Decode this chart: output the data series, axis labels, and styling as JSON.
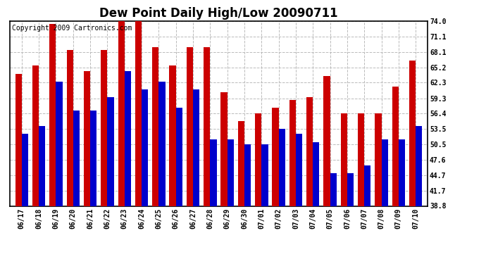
{
  "title": "Dew Point Daily High/Low 20090711",
  "copyright": "Copyright 2009 Cartronics.com",
  "yticks": [
    38.8,
    41.7,
    44.7,
    47.6,
    50.5,
    53.5,
    56.4,
    59.3,
    62.3,
    65.2,
    68.1,
    71.1,
    74.0
  ],
  "ymin": 38.8,
  "ymax": 74.0,
  "categories": [
    "06/17",
    "06/18",
    "06/19",
    "06/20",
    "06/21",
    "06/22",
    "06/23",
    "06/24",
    "06/25",
    "06/26",
    "06/27",
    "06/28",
    "06/29",
    "06/30",
    "07/01",
    "07/02",
    "07/03",
    "07/04",
    "07/05",
    "07/06",
    "07/07",
    "07/08",
    "07/09",
    "07/10"
  ],
  "highs": [
    64.0,
    65.5,
    73.5,
    68.5,
    64.5,
    68.5,
    74.0,
    74.0,
    69.0,
    65.5,
    69.0,
    69.0,
    60.5,
    55.0,
    56.4,
    57.5,
    59.0,
    59.5,
    63.5,
    56.4,
    56.4,
    56.4,
    61.5,
    66.5
  ],
  "lows": [
    52.5,
    54.0,
    62.5,
    57.0,
    57.0,
    59.5,
    64.5,
    61.0,
    62.5,
    57.5,
    61.0,
    51.5,
    51.5,
    50.5,
    50.5,
    53.5,
    52.5,
    51.0,
    45.0,
    45.0,
    46.5,
    51.5,
    51.5,
    54.0
  ],
  "high_color": "#cc0000",
  "low_color": "#0000cc",
  "bg_color": "#ffffff",
  "grid_color": "#bbbbbb",
  "title_fontsize": 12,
  "axis_fontsize": 7,
  "copyright_fontsize": 7,
  "bar_width": 0.38
}
